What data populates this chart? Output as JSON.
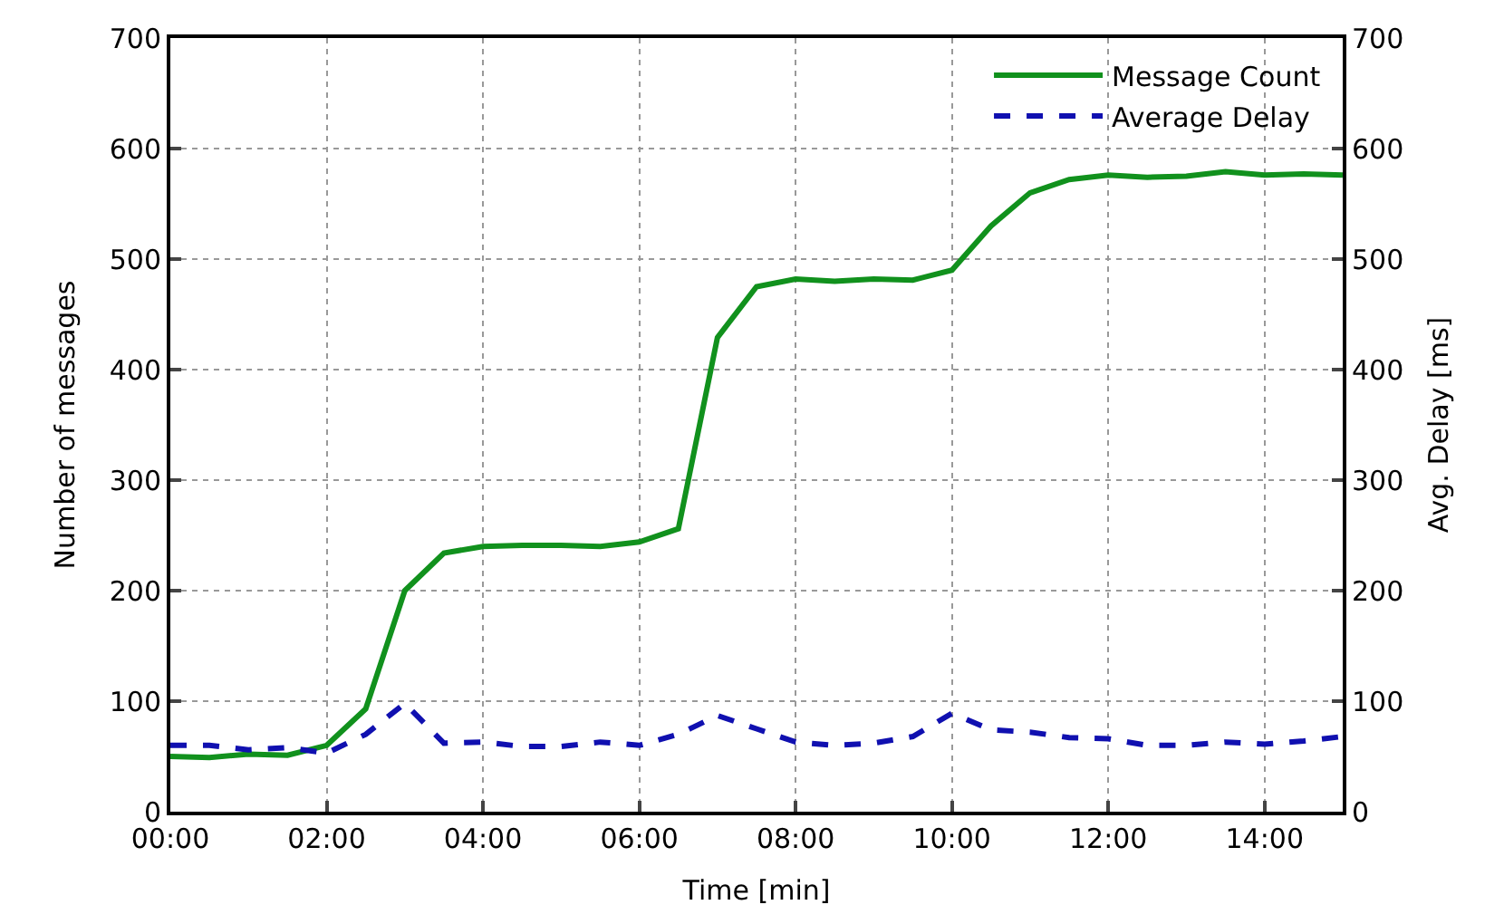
{
  "chart_data": {
    "type": "line",
    "xlabel": "Time [min]",
    "ylabel": "Number of messages",
    "y2label": "Avg. Delay [ms]",
    "x": [
      0,
      0.5,
      1,
      1.5,
      2,
      2.5,
      3,
      3.5,
      4,
      4.5,
      5,
      5.5,
      6,
      6.5,
      7,
      7.5,
      8,
      8.5,
      9,
      9.5,
      10,
      10.5,
      11,
      11.5,
      12,
      12.5,
      13,
      13.5,
      14,
      14.5,
      15
    ],
    "series": [
      {
        "name": "Message Count",
        "color": "#11911d",
        "line_style": "solid",
        "values": [
          50,
          49,
          52,
          51,
          60,
          93,
          200,
          234,
          240,
          241,
          241,
          240,
          244,
          256,
          429,
          475,
          482,
          480,
          482,
          481,
          490,
          530,
          560,
          572,
          576,
          574,
          575,
          579,
          576,
          577,
          576
        ]
      },
      {
        "name": "Average Delay",
        "color": "#1010b0",
        "line_style": "dashed",
        "axis": "y2",
        "values": [
          60,
          60,
          56,
          58,
          53,
          70,
          98,
          62,
          63,
          59,
          59,
          63,
          60,
          70,
          87,
          75,
          63,
          60,
          62,
          68,
          89,
          74,
          72,
          67,
          66,
          60,
          60,
          63,
          61,
          64,
          68
        ]
      }
    ],
    "xlim": [
      0,
      15
    ],
    "xticks": [
      {
        "value": 0,
        "label": "00:00"
      },
      {
        "value": 2,
        "label": "02:00"
      },
      {
        "value": 4,
        "label": "04:00"
      },
      {
        "value": 6,
        "label": "06:00"
      },
      {
        "value": 8,
        "label": "08:00"
      },
      {
        "value": 10,
        "label": "10:00"
      },
      {
        "value": 12,
        "label": "12:00"
      },
      {
        "value": 14,
        "label": "14:00"
      }
    ],
    "ylim": [
      0,
      700
    ],
    "yticks": [
      0,
      100,
      200,
      300,
      400,
      500,
      600,
      700
    ],
    "y2lim": [
      0,
      700
    ],
    "y2ticks": [
      0,
      100,
      200,
      300,
      400,
      500,
      600,
      700
    ],
    "grid": true,
    "legend": "top right",
    "marker": "none"
  }
}
